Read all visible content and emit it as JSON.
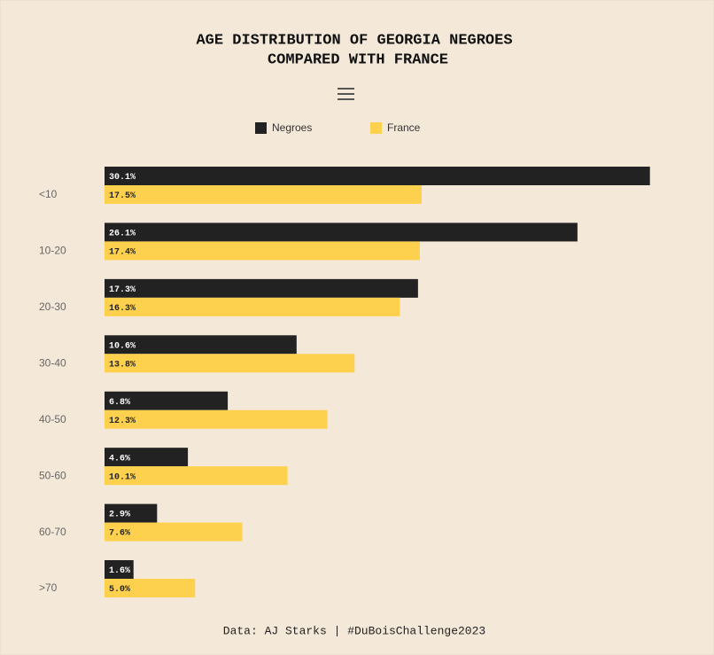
{
  "chart_data": {
    "type": "bar",
    "orientation": "horizontal",
    "title": [
      "AGE DISTRIBUTION OF GEORGIA NEGROES",
      "COMPARED WITH FRANCE"
    ],
    "caption": "Data: AJ Starks | #DuBoisChallenge2023",
    "categories": [
      "<10",
      "10-20",
      "20-30",
      "30-40",
      "40-50",
      "50-60",
      "60-70",
      ">70"
    ],
    "series": [
      {
        "name": "Negroes",
        "color": "#222222",
        "label_color": "#ffffff",
        "values": [
          30.1,
          26.1,
          17.3,
          10.6,
          6.8,
          4.6,
          2.9,
          1.6
        ],
        "value_labels": [
          "30.1%",
          "26.1%",
          "17.3%",
          "10.6%",
          "6.8%",
          "4.6%",
          "2.9%",
          "1.6%"
        ]
      },
      {
        "name": "France",
        "color": "#fdd14d",
        "label_color": "#222222",
        "values": [
          17.5,
          17.4,
          16.3,
          13.8,
          12.3,
          10.1,
          7.6,
          5.0
        ],
        "value_labels": [
          "17.5%",
          "17.4%",
          "16.3%",
          "13.8%",
          "12.3%",
          "10.1%",
          "7.6%",
          "5.0%"
        ]
      }
    ],
    "xlim": [
      0,
      33
    ]
  }
}
